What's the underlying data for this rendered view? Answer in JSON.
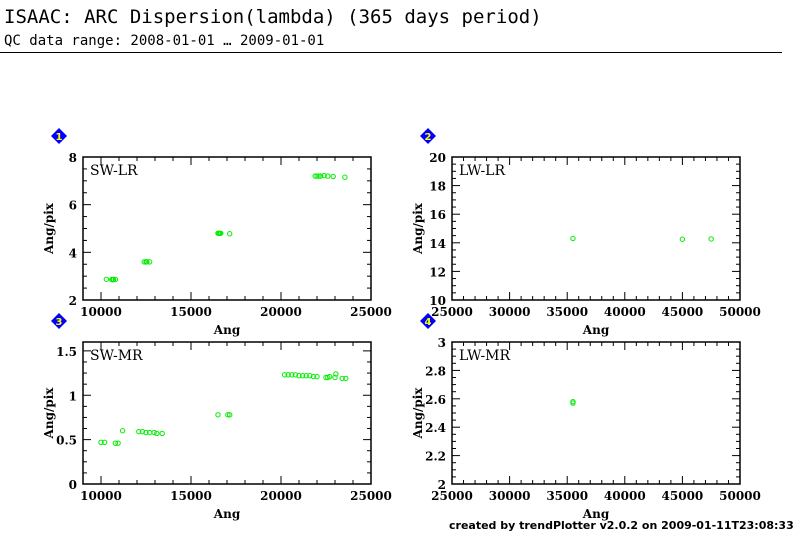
{
  "header": {
    "title": "ISAAC: ARC Dispersion(lambda) (365 days period)",
    "subtitle": "QC data range: 2008-01-01 … 2009-01-01"
  },
  "footer": "created by trendPlotter v2.0.2 on 2009-01-11T23:08:33",
  "colors": {
    "points": "#00ee00",
    "badge": "#0000ff",
    "badge_text": "#ffff00"
  },
  "chart_data": [
    {
      "type": "scatter",
      "badge": "1",
      "label": "SW-LR",
      "xlabel": "Ang",
      "ylabel": "Ang/pix",
      "xlim": [
        9000,
        25000
      ],
      "ylim": [
        2,
        8
      ],
      "xticks": [
        10000,
        15000,
        20000,
        25000
      ],
      "yticks": [
        2,
        4,
        6,
        8
      ],
      "points": [
        [
          10300,
          2.87
        ],
        [
          10600,
          2.86
        ],
        [
          10650,
          2.85
        ],
        [
          10700,
          2.86
        ],
        [
          10800,
          2.86
        ],
        [
          12400,
          3.6
        ],
        [
          12500,
          3.6
        ],
        [
          12550,
          3.6
        ],
        [
          12700,
          3.6
        ],
        [
          16500,
          4.8
        ],
        [
          16550,
          4.8
        ],
        [
          16600,
          4.8
        ],
        [
          16650,
          4.8
        ],
        [
          17150,
          4.78
        ],
        [
          21900,
          7.2
        ],
        [
          22000,
          7.2
        ],
        [
          22100,
          7.2
        ],
        [
          22200,
          7.2
        ],
        [
          22400,
          7.22
        ],
        [
          22600,
          7.2
        ],
        [
          22900,
          7.18
        ],
        [
          23550,
          7.15
        ]
      ]
    },
    {
      "type": "scatter",
      "badge": "2",
      "label": "LW-LR",
      "xlabel": "Ang",
      "ylabel": "Ang/pix",
      "xlim": [
        25000,
        50000
      ],
      "ylim": [
        10,
        20
      ],
      "xticks": [
        25000,
        30000,
        35000,
        40000,
        45000,
        50000
      ],
      "yticks": [
        10,
        12,
        14,
        16,
        18,
        20
      ],
      "points": [
        [
          35500,
          14.3
        ],
        [
          45000,
          14.25
        ],
        [
          47500,
          14.27
        ]
      ]
    },
    {
      "type": "scatter",
      "badge": "3",
      "label": "SW-MR",
      "xlabel": "Ang",
      "ylabel": "Ang/pix",
      "xlim": [
        9000,
        25000
      ],
      "ylim": [
        0,
        1.6
      ],
      "xticks": [
        10000,
        15000,
        20000,
        25000
      ],
      "yticks": [
        0,
        0.5,
        1,
        1.5
      ],
      "ytick_labels": [
        "0",
        "0.5",
        "1",
        "1.5"
      ],
      "points": [
        [
          10000,
          0.47
        ],
        [
          10200,
          0.47
        ],
        [
          10800,
          0.46
        ],
        [
          10950,
          0.46
        ],
        [
          11200,
          0.6
        ],
        [
          12100,
          0.59
        ],
        [
          12300,
          0.59
        ],
        [
          12500,
          0.58
        ],
        [
          12700,
          0.58
        ],
        [
          12950,
          0.58
        ],
        [
          13100,
          0.57
        ],
        [
          13400,
          0.57
        ],
        [
          16500,
          0.78
        ],
        [
          17050,
          0.78
        ],
        [
          17150,
          0.78
        ],
        [
          20200,
          1.23
        ],
        [
          20400,
          1.23
        ],
        [
          20600,
          1.23
        ],
        [
          20800,
          1.23
        ],
        [
          21000,
          1.22
        ],
        [
          21200,
          1.22
        ],
        [
          21400,
          1.22
        ],
        [
          21600,
          1.22
        ],
        [
          21800,
          1.21
        ],
        [
          22000,
          1.21
        ],
        [
          22500,
          1.2
        ],
        [
          22600,
          1.2
        ],
        [
          22700,
          1.21
        ],
        [
          23000,
          1.2
        ],
        [
          23050,
          1.24
        ],
        [
          23400,
          1.19
        ],
        [
          23600,
          1.19
        ]
      ]
    },
    {
      "type": "scatter",
      "badge": "4",
      "label": "LW-MR",
      "xlabel": "Ang",
      "ylabel": "Ang/pix",
      "xlim": [
        25000,
        50000
      ],
      "ylim": [
        2,
        3
      ],
      "xticks": [
        25000,
        30000,
        35000,
        40000,
        45000,
        50000
      ],
      "yticks": [
        2,
        2.2,
        2.4,
        2.6,
        2.8,
        3
      ],
      "ytick_labels": [
        "2",
        "2.2",
        "2.4",
        "2.6",
        "2.8",
        "3"
      ],
      "points": [
        [
          35500,
          2.58
        ],
        [
          35500,
          2.57
        ]
      ]
    }
  ]
}
